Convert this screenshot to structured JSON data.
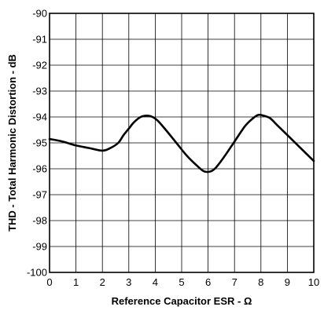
{
  "chart_data": {
    "type": "line",
    "title": "",
    "xlabel": "Reference Capacitor ESR - Ω",
    "ylabel": "THD - Total Harmonic Distortion - dB",
    "xlim": [
      0,
      10
    ],
    "ylim": [
      -100,
      -90
    ],
    "x_ticks": [
      0,
      1,
      2,
      3,
      4,
      5,
      6,
      7,
      8,
      9,
      10
    ],
    "x_tick_labels": [
      "0",
      "1",
      "2",
      "3",
      "4",
      "5",
      "6",
      "7",
      "8",
      "9",
      "10"
    ],
    "y_ticks": [
      -90,
      -91,
      -92,
      -93,
      -94,
      -95,
      -96,
      -97,
      -98,
      -99,
      -100
    ],
    "y_tick_labels": [
      "-90",
      "-91",
      "-92",
      "-93",
      "-94",
      "-95",
      "-96",
      "-97",
      "-98",
      "-99",
      "-100"
    ],
    "grid": true,
    "legend": "none",
    "line_color": "#000000",
    "series": [
      {
        "x": [
          0,
          0.5,
          1,
          1.5,
          2,
          2.3,
          2.6,
          2.8,
          3,
          3.2,
          3.45,
          3.7,
          3.9,
          4.1,
          4.4,
          4.8,
          5.2,
          5.6,
          5.85,
          6.1,
          6.3,
          6.6,
          7.0,
          7.4,
          7.7,
          7.9,
          8.1,
          8.35,
          8.6,
          9.0,
          9.5,
          10
        ],
        "y": [
          -94.85,
          -94.95,
          -95.1,
          -95.2,
          -95.3,
          -95.2,
          -95.0,
          -94.7,
          -94.45,
          -94.2,
          -94.0,
          -93.95,
          -94.0,
          -94.15,
          -94.5,
          -95.0,
          -95.5,
          -95.9,
          -96.1,
          -96.1,
          -95.95,
          -95.55,
          -94.95,
          -94.35,
          -94.05,
          -93.92,
          -93.95,
          -94.05,
          -94.3,
          -94.7,
          -95.2,
          -95.7
        ]
      }
    ]
  }
}
